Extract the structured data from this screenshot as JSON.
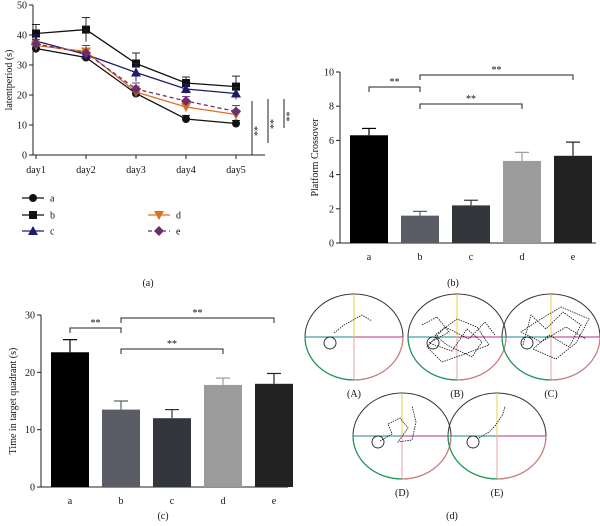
{
  "panels": {
    "a": "(a)",
    "b": "(b)",
    "c": "(c)",
    "d": "(d)"
  },
  "chart_data": [
    {
      "id": "a",
      "type": "line",
      "title": "",
      "xlabel": "",
      "ylabel": "latentperiod (s)",
      "categories": [
        "day1",
        "day2",
        "day3",
        "day4",
        "day5"
      ],
      "ylim": [
        0,
        50
      ],
      "yticks": [
        0,
        10,
        20,
        30,
        40,
        50
      ],
      "series": [
        {
          "name": "a",
          "marker": "circle",
          "color": "#111111",
          "dashed": false,
          "values": [
            35.5,
            32.5,
            20.5,
            12,
            10.5
          ],
          "errors": [
            1.5,
            1,
            1.2,
            1.2,
            1
          ]
        },
        {
          "name": "b",
          "marker": "square",
          "color": "#111111",
          "dashed": false,
          "values": [
            40.5,
            41.8,
            30.5,
            24,
            22.8
          ],
          "errors": [
            3,
            4,
            3.5,
            2,
            3.5
          ]
        },
        {
          "name": "c",
          "marker": "triangle-up",
          "color": "#1c1c6b",
          "dashed": false,
          "values": [
            38,
            33.5,
            27.5,
            22,
            20.5
          ],
          "errors": [
            2,
            2,
            3,
            1.5,
            2
          ]
        },
        {
          "name": "d",
          "marker": "triangle-down",
          "color": "#e07020",
          "dashed": false,
          "values": [
            36.5,
            34.5,
            21,
            16,
            13.5
          ],
          "errors": [
            1.5,
            2,
            2,
            1.5,
            1.5
          ]
        },
        {
          "name": "e",
          "marker": "diamond",
          "color": "#6b2f6b",
          "dashed": true,
          "values": [
            37,
            34,
            22,
            18,
            14.5
          ],
          "errors": [
            1.5,
            2.5,
            2,
            1.5,
            2
          ]
        }
      ],
      "significance": [
        "**",
        "**",
        "**"
      ]
    },
    {
      "id": "b",
      "type": "bar",
      "ylabel": "Platform Crossover",
      "categories": [
        "a",
        "b",
        "c",
        "d",
        "e"
      ],
      "values": [
        6.3,
        1.6,
        2.2,
        4.8,
        5.1
      ],
      "errors": [
        0.4,
        0.25,
        0.3,
        0.5,
        0.8
      ],
      "colors": [
        "#000000",
        "#5a5d66",
        "#33363b",
        "#9b9b9b",
        "#222222"
      ],
      "ylim": [
        0,
        10
      ],
      "yticks": [
        0,
        2,
        4,
        6,
        8,
        10
      ],
      "significance": [
        {
          "from": 0,
          "to": 1,
          "label": "**"
        },
        {
          "from": 1,
          "to": 4,
          "label": "**"
        },
        {
          "from": 1,
          "to": 3,
          "label": "**"
        }
      ]
    },
    {
      "id": "c",
      "type": "bar",
      "ylabel": "Time in target quadrant (s)",
      "categories": [
        "a",
        "b",
        "c",
        "d",
        "e"
      ],
      "values": [
        23.5,
        13.5,
        12,
        17.8,
        18
      ],
      "errors": [
        2.2,
        1.5,
        1.5,
        1.2,
        1.8
      ],
      "colors": [
        "#000000",
        "#5a5d66",
        "#33363b",
        "#9b9b9b",
        "#222222"
      ],
      "ylim": [
        0,
        30
      ],
      "yticks": [
        0,
        10,
        20,
        30
      ],
      "significance": [
        {
          "from": 0,
          "to": 1,
          "label": "**"
        },
        {
          "from": 1,
          "to": 4,
          "label": "**"
        },
        {
          "from": 1,
          "to": 3,
          "label": "**"
        }
      ]
    }
  ],
  "tracks": {
    "labels": [
      "(A)",
      "(B)",
      "(C)",
      "(D)",
      "(E)"
    ]
  }
}
